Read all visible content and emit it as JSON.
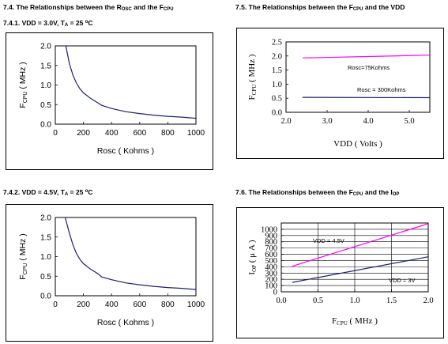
{
  "headings": {
    "h74": {
      "pre": "7.4. The Relationships between the R",
      "sub1": "OSC",
      "mid": " and the F",
      "sub2": "CPU",
      "post": ""
    },
    "h741": {
      "pre": "7.4.1. VDD = 3.0V, T",
      "sub": "A",
      "mid": " = 25 ",
      "sup": "o",
      "post": "C"
    },
    "h742": {
      "pre": "7.4.2. VDD = 4.5V, T",
      "sub": "A",
      "mid": " = 25 ",
      "sup": "o",
      "post": "C"
    },
    "h75": {
      "pre": "7.5. The Relationships between the F",
      "sub": "CPU",
      "post": " and the VDD"
    },
    "h76": {
      "pre": "7.6. The Relationships between the F",
      "sub": "CPU",
      "post": " and the I",
      "sub2": "OP"
    }
  },
  "chart_data": [
    {
      "id": "c1",
      "type": "line",
      "xlabel": "Rosc ( Kohms )",
      "ylabel_main": "F",
      "ylabel_sub": "CPU",
      "ylabel_tail": " ( MHz )",
      "xlim": [
        0,
        1000
      ],
      "ylim": [
        0,
        2.0
      ],
      "xticks": [
        0,
        200,
        400,
        600,
        800,
        1000
      ],
      "yticks": [
        0,
        0.5,
        1.0,
        1.5,
        2.0
      ],
      "xtick_labels": [
        "0",
        "200",
        "400",
        "600",
        "800",
        "1000"
      ],
      "ytick_labels": [
        "0.0",
        "0.5",
        "1.0",
        "1.5",
        "2.0"
      ],
      "grid": false,
      "color": "#1f1f6e",
      "series": [
        {
          "x": [
            75,
            100,
            125,
            150,
            175,
            200,
            250,
            300,
            330,
            400,
            500,
            600,
            700,
            800,
            900,
            1000
          ],
          "values": [
            2.0,
            1.55,
            1.25,
            1.05,
            0.9,
            0.8,
            0.66,
            0.55,
            0.48,
            0.4,
            0.32,
            0.27,
            0.23,
            0.2,
            0.18,
            0.15
          ]
        }
      ]
    },
    {
      "id": "c2",
      "type": "line",
      "xlabel": "Rosc ( Kohms )",
      "ylabel_main": "F",
      "ylabel_sub": "CPU",
      "ylabel_tail": " ( MHz )",
      "xlim": [
        0,
        1000
      ],
      "ylim": [
        0,
        2.0
      ],
      "xticks": [
        0,
        200,
        400,
        600,
        800,
        1000
      ],
      "yticks": [
        0,
        0.5,
        1.0,
        1.5,
        2.0
      ],
      "xtick_labels": [
        "0",
        "200",
        "400",
        "600",
        "800",
        "1000"
      ],
      "ytick_labels": [
        "0.0",
        "0.5",
        "1.0",
        "1.5",
        "2.0"
      ],
      "grid": false,
      "color": "#1f1f6e",
      "series": [
        {
          "x": [
            70,
            100,
            125,
            150,
            175,
            200,
            250,
            300,
            330,
            400,
            500,
            600,
            700,
            800,
            900,
            1000
          ],
          "values": [
            2.0,
            1.6,
            1.3,
            1.08,
            0.93,
            0.82,
            0.68,
            0.57,
            0.48,
            0.41,
            0.33,
            0.28,
            0.24,
            0.21,
            0.19,
            0.16
          ]
        }
      ]
    },
    {
      "id": "c3",
      "type": "line",
      "xlabel": "VDD ( Volts )",
      "ylabel_main": "F",
      "ylabel_sub": "CPU",
      "ylabel_tail": " ( MHz )",
      "xlim": [
        2.0,
        5.5
      ],
      "ylim": [
        0,
        2.5
      ],
      "xticks": [
        2.0,
        3.0,
        4.0,
        5.0
      ],
      "yticks": [
        0,
        0.5,
        1.0,
        1.5,
        2.0,
        2.5
      ],
      "xtick_labels": [
        "2.0",
        "3.0",
        "4.0",
        "5.0"
      ],
      "ytick_labels": [
        "0.0",
        "0.5",
        "1.0",
        "1.5",
        "2.0",
        "2.5"
      ],
      "grid": false,
      "series": [
        {
          "name": "Rosc=75Kohms",
          "color": "#ff00ff",
          "x": [
            2.4,
            5.5
          ],
          "values": [
            1.93,
            2.03
          ]
        },
        {
          "name": "Rosc = 300Kohms",
          "color": "#1f1f6e",
          "x": [
            2.4,
            5.5
          ],
          "values": [
            0.53,
            0.52
          ]
        }
      ]
    },
    {
      "id": "c4",
      "type": "line",
      "xlabel_main": "F",
      "xlabel_sub": "CPU",
      "xlabel_tail": " ( MHz )",
      "ylabel_main": "I",
      "ylabel_sub": "OP",
      "ylabel_tail": " ( μ A )",
      "xlim": [
        0,
        2.0
      ],
      "ylim": [
        0,
        1100
      ],
      "xticks": [
        0,
        0.5,
        1.0,
        1.5,
        2.0
      ],
      "yticks": [
        0,
        100,
        200,
        300,
        400,
        500,
        600,
        700,
        800,
        900,
        1000
      ],
      "xtick_labels": [
        "0.0",
        "0.5",
        "1.0",
        "1.5",
        "2.0"
      ],
      "ytick_labels": [
        "0",
        "100",
        "200",
        "300",
        "400",
        "500",
        "600",
        "700",
        "800",
        "900",
        "1000"
      ],
      "grid": true,
      "series": [
        {
          "name": "VDD = 4.5V",
          "color": "#ff00ff",
          "x": [
            0.15,
            2.0
          ],
          "values": [
            410,
            1090
          ]
        },
        {
          "name": "VDD = 3V",
          "color": "#1f1f6e",
          "x": [
            0.15,
            2.0
          ],
          "values": [
            150,
            560
          ]
        }
      ]
    }
  ]
}
